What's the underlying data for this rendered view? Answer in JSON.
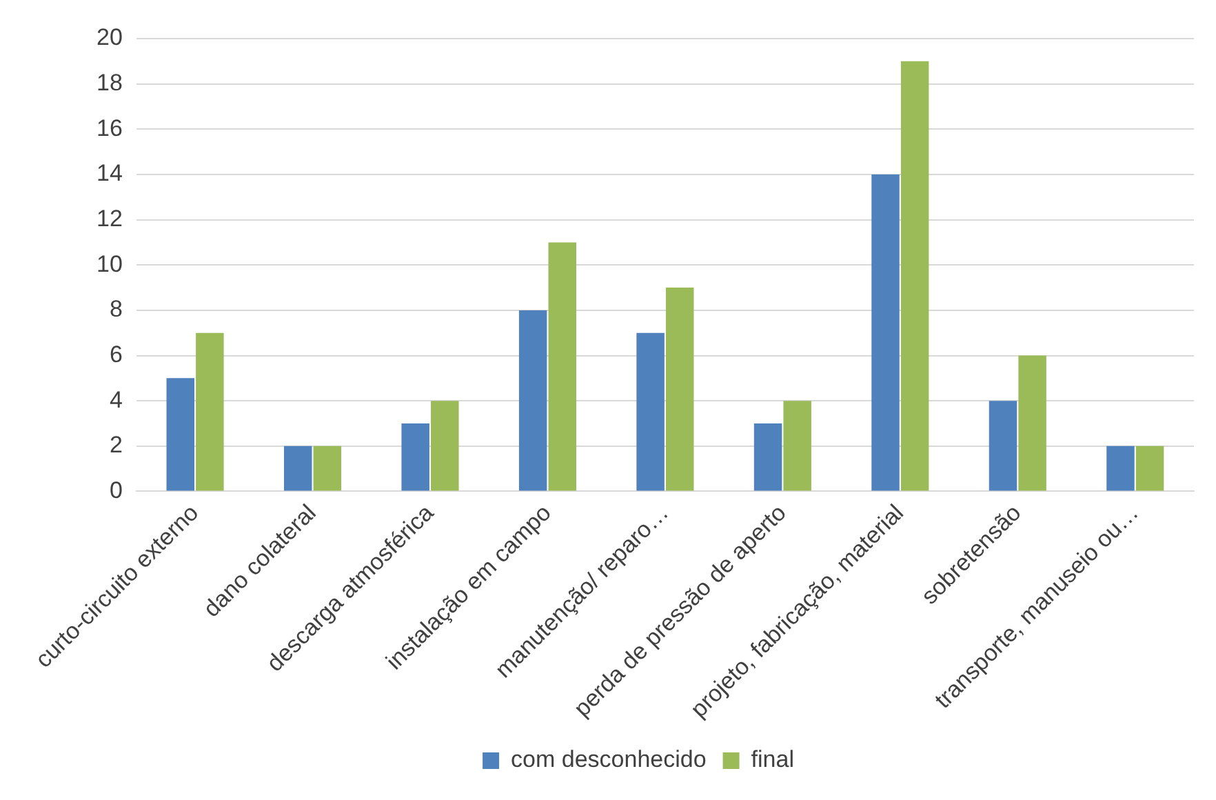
{
  "chart_data": {
    "type": "bar",
    "categories": [
      "curto-circuito externo",
      "dano colateral",
      "descarga atmosférica",
      "instalação em campo",
      "manutenção/ reparo…",
      "perda de pressão de aperto",
      "projeto, fabricação, material",
      "sobretensão",
      "transporte, manuseio ou…"
    ],
    "series": [
      {
        "name": "com desconhecido",
        "color": "#4f81bd",
        "values": [
          5,
          2,
          3,
          8,
          7,
          3,
          14,
          4,
          2
        ]
      },
      {
        "name": "final",
        "color": "#9bbb59",
        "values": [
          7,
          2,
          4,
          11,
          9,
          4,
          19,
          6,
          2
        ]
      }
    ],
    "ylim": [
      0,
      20
    ],
    "yticks": [
      0,
      2,
      4,
      6,
      8,
      10,
      12,
      14,
      16,
      18,
      20
    ],
    "grid": "y",
    "legend": "bottom"
  }
}
